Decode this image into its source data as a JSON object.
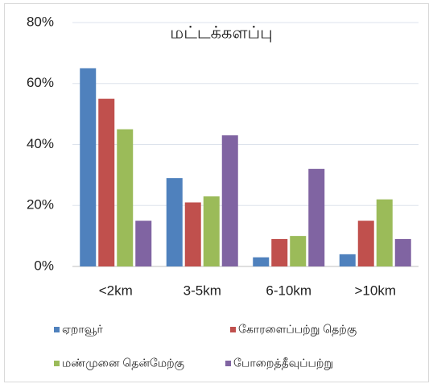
{
  "chart_data": {
    "type": "bar",
    "title": "மட்டக்களப்பு",
    "categories": [
      "<2km",
      "3-5km",
      "6-10km",
      ">10km"
    ],
    "series": [
      {
        "name": "ஏறாவூர்",
        "color": "#4f81bd",
        "values": [
          65,
          29,
          3,
          4
        ]
      },
      {
        "name": "கோரளைப்பற்று  தெற்கு",
        "color": "#c0504d",
        "values": [
          55,
          21,
          9,
          15
        ]
      },
      {
        "name": "மண்முனை  தென்மேற்கு",
        "color": "#9bbb59",
        "values": [
          45,
          23,
          10,
          22
        ]
      },
      {
        "name": "போறைத்தீவுப்பற்று",
        "color": "#8064a2",
        "values": [
          15,
          43,
          32,
          9
        ]
      }
    ],
    "ylim": [
      0,
      80
    ],
    "yticks": [
      {
        "value": 0,
        "label": "0%"
      },
      {
        "value": 20,
        "label": "20%"
      },
      {
        "value": 40,
        "label": "40%"
      },
      {
        "value": 60,
        "label": "60%"
      },
      {
        "value": 80,
        "label": "80%"
      }
    ],
    "grid": true
  }
}
